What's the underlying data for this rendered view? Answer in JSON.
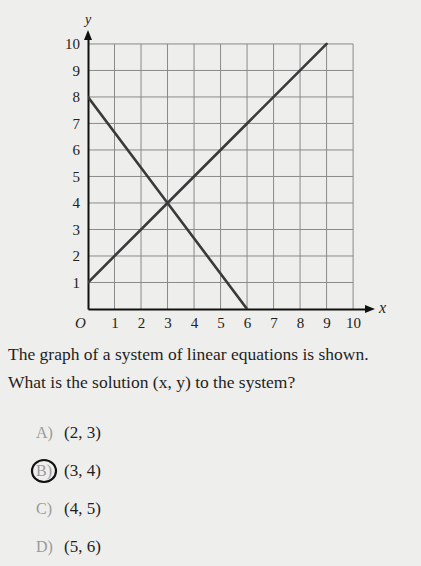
{
  "chart_data": {
    "type": "line",
    "x": [
      0,
      3,
      6,
      9
    ],
    "series": [
      {
        "values": [
          1,
          4,
          7,
          10
        ],
        "color": "#3a3a3a"
      },
      {
        "values": [
          8,
          4,
          0,
          null
        ],
        "color": "#3a3a3a"
      }
    ],
    "x_label": "x",
    "y_label": "y",
    "xlim": [
      0,
      10.6
    ],
    "ylim": [
      0,
      10.3
    ],
    "xticks": [
      {
        "value": 0,
        "label": "O"
      },
      1,
      2,
      3,
      4,
      5,
      6,
      7,
      8,
      9,
      10
    ],
    "yticks": [
      1,
      2,
      3,
      4,
      5,
      6,
      7,
      8,
      9,
      10
    ],
    "grid": true
  },
  "question": {
    "lines": [
      "The graph of a system of linear equations is shown.",
      "What is the solution (x, y) to the system?"
    ],
    "choices": [
      {
        "letter": "A)",
        "text": "(2, 3)"
      },
      {
        "letter": "B)",
        "text": "(3, 4)"
      },
      {
        "letter": "C)",
        "text": "(4, 5)"
      },
      {
        "letter": "D)",
        "text": "(5, 6)"
      }
    ],
    "circled": 1
  }
}
